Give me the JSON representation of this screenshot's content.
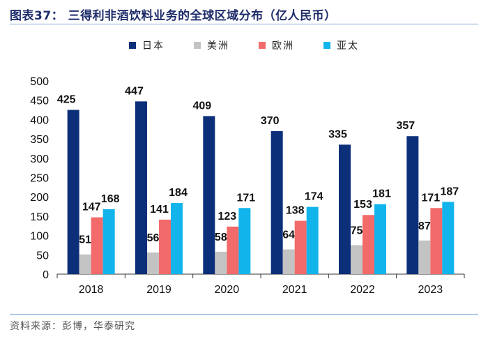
{
  "title": "图表37：  三得利非酒饮料业务的全球区域分布（亿人民币）",
  "source": "资料来源：彭博，华泰研究",
  "chart_data": {
    "type": "bar",
    "categories": [
      "2018",
      "2019",
      "2020",
      "2021",
      "2022",
      "2023"
    ],
    "series": [
      {
        "name": "日本",
        "color": "#0c2f7a",
        "values": [
          425,
          447,
          409,
          370,
          335,
          357
        ]
      },
      {
        "name": "美洲",
        "color": "#c3c3c3",
        "values": [
          51,
          56,
          58,
          64,
          75,
          87
        ]
      },
      {
        "name": "欧洲",
        "color": "#f26a6a",
        "values": [
          147,
          141,
          123,
          138,
          153,
          171
        ]
      },
      {
        "name": "亚太",
        "color": "#12b4ec",
        "values": [
          168,
          184,
          171,
          174,
          181,
          187
        ]
      }
    ],
    "ylim": [
      0,
      500
    ],
    "yticks": [
      0,
      50,
      100,
      150,
      200,
      250,
      300,
      350,
      400,
      450,
      500
    ],
    "legend_position": "top"
  }
}
